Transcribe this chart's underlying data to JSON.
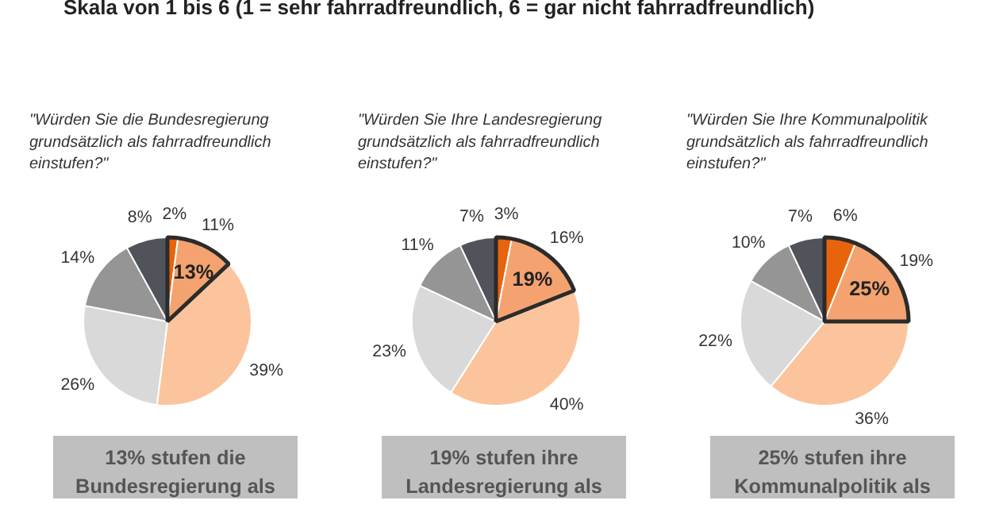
{
  "chart_data": [
    {
      "type": "pie",
      "subtitle": "Skala von 1 bis 6 (1 = sehr fahrradfreundlich, 6 = gar nicht fahrradfreundlich)",
      "title": "\"Würden Sie die Bundesregierung\ngrundsätzlich als fahrradfreundlich\neinstufen?\"",
      "categories": [
        null,
        null,
        null,
        null,
        null,
        null
      ],
      "values": [
        2,
        11,
        39,
        26,
        14,
        8
      ],
      "value_labels": [
        "2%",
        "11%",
        "39%",
        "26%",
        "14%",
        "8%"
      ],
      "colors": [
        "#e8640c",
        "#f4a370",
        "#fbc49c",
        "#d9d9d9",
        "#959595",
        "#50535a"
      ],
      "annotations": [
        "13%",
        "13% stufen die\nBundesregierung als"
      ]
    },
    {
      "type": "pie",
      "title": "\"Würden Sie Ihre Landesregierung\ngrundsätzlich als fahrradfreundlich\neinstufen?\"",
      "categories": [
        null,
        null,
        null,
        null,
        null,
        null
      ],
      "values": [
        3,
        16,
        40,
        23,
        11,
        7
      ],
      "value_labels": [
        "3%",
        "16%",
        "40%",
        "23%",
        "11%",
        "7%"
      ],
      "colors": [
        "#e8640c",
        "#f4a370",
        "#fbc49c",
        "#d9d9d9",
        "#959595",
        "#50535a"
      ],
      "annotations": [
        "19%",
        "19% stufen ihre\nLandesregierung als"
      ]
    },
    {
      "type": "pie",
      "title": "\"Würden Sie Ihre Kommunalpolitik\ngrundsätzlich als fahrradfreundlich\neinstufen?\"",
      "categories": [
        null,
        null,
        null,
        null,
        null,
        null
      ],
      "values": [
        6,
        19,
        36,
        22,
        10,
        7
      ],
      "value_labels": [
        "6%",
        "19%",
        "36%",
        "22%",
        "10%",
        "7%"
      ],
      "colors": [
        "#e8640c",
        "#f4a370",
        "#fbc49c",
        "#d9d9d9",
        "#959595",
        "#50535a"
      ],
      "annotations": [
        "25%",
        "25% stufen ihre\nKommunalpolitik als"
      ]
    }
  ]
}
